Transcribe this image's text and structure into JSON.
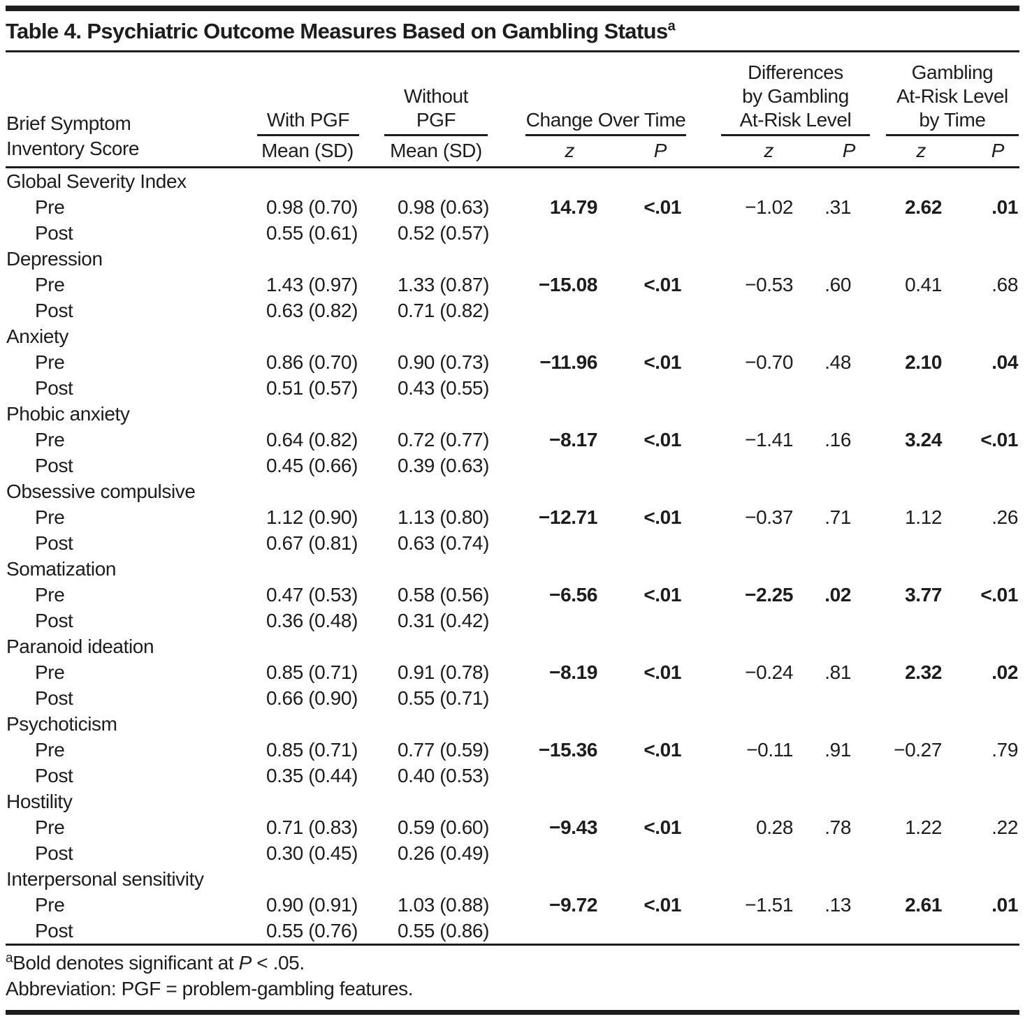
{
  "title": {
    "text": "Table 4. Psychiatric Outcome Measures Based on Gambling Status",
    "sup": "a"
  },
  "table": {
    "row_label_header": [
      "Brief Symptom",
      "Inventory Score"
    ],
    "groups": [
      {
        "label": "With PGF",
        "sub": [
          "Mean (SD)"
        ]
      },
      {
        "label": "Without PGF",
        "sub": [
          "Mean (SD)"
        ]
      },
      {
        "label": "Change Over Time",
        "sub": [
          "z",
          "P"
        ]
      },
      {
        "label": [
          "Differences",
          "by Gambling",
          "At-Risk Level"
        ],
        "sub": [
          "z",
          "P"
        ]
      },
      {
        "label": [
          "Gambling",
          "At-Risk Level",
          "by Time"
        ],
        "sub": [
          "z",
          "P"
        ]
      }
    ],
    "rows": [
      {
        "label": "Global Severity Index"
      },
      {
        "label": "Pre",
        "indent": true,
        "cells": [
          {
            "t": "0.98 (0.70)"
          },
          {
            "t": "0.98 (0.63)"
          },
          {
            "t": "14.79",
            "b": true
          },
          {
            "t": "<.01",
            "b": true
          },
          {
            "t": "−1.02"
          },
          {
            "t": ".31"
          },
          {
            "t": "2.62",
            "b": true
          },
          {
            "t": ".01",
            "b": true
          }
        ]
      },
      {
        "label": "Post",
        "indent": true,
        "cells": [
          {
            "t": "0.55 (0.61)"
          },
          {
            "t": "0.52 (0.57)"
          }
        ]
      },
      {
        "label": "Depression"
      },
      {
        "label": "Pre",
        "indent": true,
        "cells": [
          {
            "t": "1.43 (0.97)"
          },
          {
            "t": "1.33 (0.87)"
          },
          {
            "t": "−15.08",
            "b": true
          },
          {
            "t": "<.01",
            "b": true
          },
          {
            "t": "−0.53"
          },
          {
            "t": ".60"
          },
          {
            "t": "0.41"
          },
          {
            "t": ".68"
          }
        ]
      },
      {
        "label": "Post",
        "indent": true,
        "cells": [
          {
            "t": "0.63 (0.82)"
          },
          {
            "t": "0.71 (0.82)"
          }
        ]
      },
      {
        "label": "Anxiety"
      },
      {
        "label": "Pre",
        "indent": true,
        "cells": [
          {
            "t": "0.86 (0.70)"
          },
          {
            "t": "0.90 (0.73)"
          },
          {
            "t": "−11.96",
            "b": true
          },
          {
            "t": "<.01",
            "b": true
          },
          {
            "t": "−0.70"
          },
          {
            "t": ".48"
          },
          {
            "t": "2.10",
            "b": true
          },
          {
            "t": ".04",
            "b": true
          }
        ]
      },
      {
        "label": "Post",
        "indent": true,
        "cells": [
          {
            "t": "0.51 (0.57)"
          },
          {
            "t": "0.43 (0.55)"
          }
        ]
      },
      {
        "label": "Phobic anxiety"
      },
      {
        "label": "Pre",
        "indent": true,
        "cells": [
          {
            "t": "0.64 (0.82)"
          },
          {
            "t": "0.72 (0.77)"
          },
          {
            "t": "−8.17",
            "b": true
          },
          {
            "t": "<.01",
            "b": true
          },
          {
            "t": "−1.41"
          },
          {
            "t": ".16"
          },
          {
            "t": "3.24",
            "b": true
          },
          {
            "t": "<.01",
            "b": true
          }
        ]
      },
      {
        "label": "Post",
        "indent": true,
        "cells": [
          {
            "t": "0.45 (0.66)"
          },
          {
            "t": "0.39 (0.63)"
          }
        ]
      },
      {
        "label": "Obsessive compulsive"
      },
      {
        "label": "Pre",
        "indent": true,
        "cells": [
          {
            "t": "1.12 (0.90)"
          },
          {
            "t": "1.13 (0.80)"
          },
          {
            "t": "−12.71",
            "b": true
          },
          {
            "t": "<.01",
            "b": true
          },
          {
            "t": "−0.37"
          },
          {
            "t": ".71"
          },
          {
            "t": "1.12"
          },
          {
            "t": ".26"
          }
        ]
      },
      {
        "label": "Post",
        "indent": true,
        "cells": [
          {
            "t": "0.67 (0.81)"
          },
          {
            "t": "0.63 (0.74)"
          }
        ]
      },
      {
        "label": "Somatization"
      },
      {
        "label": "Pre",
        "indent": true,
        "cells": [
          {
            "t": "0.47 (0.53)"
          },
          {
            "t": "0.58 (0.56)"
          },
          {
            "t": "−6.56",
            "b": true
          },
          {
            "t": "<.01",
            "b": true
          },
          {
            "t": "−2.25",
            "b": true
          },
          {
            "t": ".02",
            "b": true
          },
          {
            "t": "3.77",
            "b": true
          },
          {
            "t": "<.01",
            "b": true
          }
        ]
      },
      {
        "label": "Post",
        "indent": true,
        "cells": [
          {
            "t": "0.36 (0.48)"
          },
          {
            "t": "0.31 (0.42)"
          }
        ]
      },
      {
        "label": "Paranoid ideation"
      },
      {
        "label": "Pre",
        "indent": true,
        "cells": [
          {
            "t": "0.85 (0.71)"
          },
          {
            "t": "0.91 (0.78)"
          },
          {
            "t": "−8.19",
            "b": true
          },
          {
            "t": "<.01",
            "b": true
          },
          {
            "t": "−0.24"
          },
          {
            "t": ".81"
          },
          {
            "t": "2.32",
            "b": true
          },
          {
            "t": ".02",
            "b": true
          }
        ]
      },
      {
        "label": "Post",
        "indent": true,
        "cells": [
          {
            "t": "0.66 (0.90)"
          },
          {
            "t": "0.55 (0.71)"
          }
        ]
      },
      {
        "label": "Psychoticism"
      },
      {
        "label": "Pre",
        "indent": true,
        "cells": [
          {
            "t": "0.85 (0.71)"
          },
          {
            "t": "0.77 (0.59)"
          },
          {
            "t": "−15.36",
            "b": true
          },
          {
            "t": "<.01",
            "b": true
          },
          {
            "t": "−0.11"
          },
          {
            "t": ".91"
          },
          {
            "t": "−0.27"
          },
          {
            "t": ".79"
          }
        ]
      },
      {
        "label": "Post",
        "indent": true,
        "cells": [
          {
            "t": "0.35 (0.44)"
          },
          {
            "t": "0.40 (0.53)"
          }
        ]
      },
      {
        "label": "Hostility"
      },
      {
        "label": "Pre",
        "indent": true,
        "cells": [
          {
            "t": "0.71 (0.83)"
          },
          {
            "t": "0.59 (0.60)"
          },
          {
            "t": "−9.43",
            "b": true
          },
          {
            "t": "<.01",
            "b": true
          },
          {
            "t": "0.28"
          },
          {
            "t": ".78"
          },
          {
            "t": "1.22"
          },
          {
            "t": ".22"
          }
        ]
      },
      {
        "label": "Post",
        "indent": true,
        "cells": [
          {
            "t": "0.30 (0.45)"
          },
          {
            "t": "0.26 (0.49)"
          }
        ]
      },
      {
        "label": "Interpersonal sensitivity"
      },
      {
        "label": "Pre",
        "indent": true,
        "cells": [
          {
            "t": "0.90 (0.91)"
          },
          {
            "t": "1.03 (0.88)"
          },
          {
            "t": "−9.72",
            "b": true
          },
          {
            "t": "<.01",
            "b": true
          },
          {
            "t": "−1.51"
          },
          {
            "t": ".13"
          },
          {
            "t": "2.61",
            "b": true
          },
          {
            "t": ".01",
            "b": true
          }
        ]
      },
      {
        "label": "Post",
        "indent": true,
        "cells": [
          {
            "t": "0.55 (0.76)"
          },
          {
            "t": "0.55 (0.86)"
          }
        ]
      }
    ]
  },
  "footnotes": {
    "note1": {
      "sup": "a",
      "pre": "Bold denotes significant at ",
      "italic": "P",
      "post": " < .05."
    },
    "note2": "Abbreviation: PGF = problem-gambling features."
  }
}
